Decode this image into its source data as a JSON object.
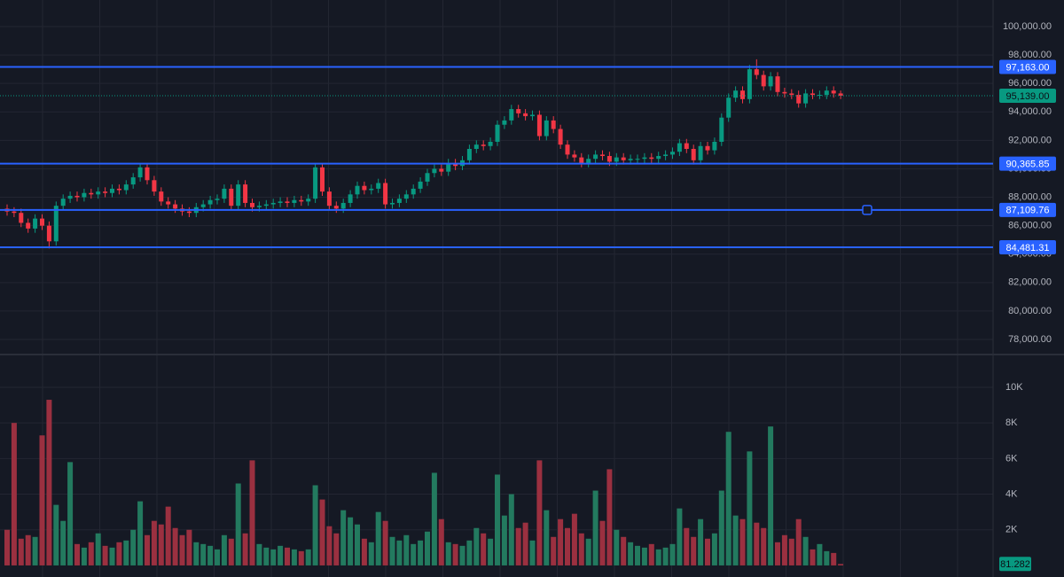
{
  "chart_data": {
    "type": "candlestick",
    "up_color": "#089981",
    "down_color": "#f23645",
    "volume_up_color": "#237a5f",
    "volume_down_color": "#9b3040",
    "level_color": "#2962ff",
    "grid": true,
    "ylim": [
      76940,
      101870
    ],
    "yticks": [
      {
        "value": 78000,
        "label": "78,000.00"
      },
      {
        "value": 80000,
        "label": "80,000.00"
      },
      {
        "value": 82000,
        "label": "82,000.00"
      },
      {
        "value": 84000,
        "label": "84,000.00"
      },
      {
        "value": 86000,
        "label": "86,000.00"
      },
      {
        "value": 88000,
        "label": "88,000.00"
      },
      {
        "value": 90000,
        "label": "90,000.00"
      },
      {
        "value": 92000,
        "label": "92,000.00"
      },
      {
        "value": 94000,
        "label": "94,000.00"
      },
      {
        "value": 96000,
        "label": "96,000.00"
      },
      {
        "value": 98000,
        "label": "98,000.00"
      },
      {
        "value": 100000,
        "label": "100,000.00"
      }
    ],
    "y2lim": [
      -650,
      11840
    ],
    "y2ticks": [
      {
        "value": 2000,
        "label": "2K"
      },
      {
        "value": 4000,
        "label": "4K"
      },
      {
        "value": 6000,
        "label": "6K"
      },
      {
        "value": 8000,
        "label": "8K"
      },
      {
        "value": 10000,
        "label": "10K"
      }
    ],
    "levels": [
      {
        "value": 97163,
        "label": "97,163.00"
      },
      {
        "value": 90365.85,
        "label": "90,365.85"
      },
      {
        "value": 87109.76,
        "label": "87,109.76"
      },
      {
        "value": 84481.31,
        "label": "84,481.31"
      }
    ],
    "last_price": {
      "value": 95139,
      "label": "95,139.00"
    },
    "open": [
      87200,
      87000,
      86900,
      86200,
      85800,
      86500,
      86000,
      84900,
      87400,
      87900,
      88100,
      88000,
      88300,
      88200,
      88400,
      88300,
      88600,
      88500,
      88900,
      89400,
      90100,
      89200,
      88400,
      87700,
      87500,
      87200,
      87000,
      86900,
      87300,
      87500,
      87800,
      87900,
      88600,
      87400,
      88900,
      87600,
      87300,
      87400,
      87500,
      87600,
      87700,
      87600,
      87800,
      87700,
      87900,
      90100,
      88400,
      87400,
      87200,
      87600,
      88200,
      88800,
      88500,
      88600,
      89000,
      87500,
      87600,
      87900,
      88200,
      88600,
      89100,
      89700,
      90000,
      89800,
      90400,
      90200,
      90600,
      91400,
      91700,
      91600,
      91900,
      93100,
      93400,
      94200,
      93900,
      93700,
      93800,
      92300,
      93400,
      92800,
      91700,
      91000,
      90800,
      90400,
      90700,
      91000,
      90900,
      90500,
      90800,
      90600,
      90700,
      90700,
      90800,
      90700,
      90900,
      91000,
      91200,
      91800,
      91400,
      90600,
      91600,
      91300,
      91900,
      93600,
      95000,
      95500,
      94900,
      97000,
      96600,
      95800,
      96500,
      95400,
      95300,
      95200,
      94600,
      95300,
      95200,
      95200,
      95500,
      95300
    ],
    "high": [
      87500,
      87300,
      87200,
      86500,
      86800,
      86800,
      86300,
      87700,
      88200,
      88400,
      88400,
      88600,
      88600,
      88700,
      88700,
      88900,
      88900,
      89200,
      89700,
      90400,
      90400,
      89500,
      88700,
      88000,
      87800,
      87500,
      87300,
      87600,
      87800,
      88100,
      88200,
      88900,
      88900,
      89200,
      89200,
      87900,
      87700,
      87800,
      87900,
      88000,
      88000,
      88100,
      88100,
      88200,
      90400,
      90400,
      88700,
      87700,
      87900,
      88500,
      89100,
      89100,
      88900,
      89300,
      89300,
      87900,
      88200,
      88500,
      88900,
      89400,
      90000,
      90300,
      90300,
      90700,
      90700,
      90900,
      91700,
      92000,
      92000,
      92200,
      93400,
      93700,
      94500,
      94500,
      94200,
      94100,
      94100,
      93700,
      93700,
      93100,
      92000,
      91300,
      91100,
      91000,
      91300,
      91300,
      91200,
      91100,
      91100,
      91000,
      91000,
      91100,
      91100,
      91200,
      91300,
      91500,
      92100,
      92100,
      91700,
      91900,
      91900,
      92200,
      93900,
      95300,
      95800,
      95800,
      97300,
      97700,
      96900,
      96800,
      96800,
      95700,
      95600,
      95500,
      95600,
      95600,
      95500,
      95800,
      95800,
      95500
    ],
    "low": [
      86700,
      86600,
      85900,
      85500,
      85500,
      85700,
      84400,
      84600,
      87100,
      87600,
      87700,
      87700,
      87900,
      87900,
      88000,
      88000,
      88200,
      88200,
      88600,
      89100,
      88900,
      88100,
      87400,
      87200,
      86900,
      86700,
      86600,
      86600,
      87000,
      87200,
      87500,
      87600,
      87100,
      87100,
      87300,
      87000,
      87000,
      87100,
      87200,
      87300,
      87300,
      87300,
      87400,
      87400,
      87600,
      88100,
      87100,
      86900,
      86900,
      87300,
      87900,
      88200,
      88200,
      88300,
      87200,
      87200,
      87300,
      87600,
      87900,
      88300,
      88800,
      89400,
      89500,
      89500,
      89900,
      89900,
      90300,
      91100,
      91300,
      91300,
      91600,
      92800,
      93100,
      93600,
      93400,
      93400,
      92000,
      92000,
      92500,
      91400,
      90700,
      90500,
      90100,
      90100,
      90400,
      90600,
      90200,
      90200,
      90300,
      90300,
      90400,
      90400,
      90400,
      90400,
      90600,
      90700,
      90900,
      91100,
      90300,
      90300,
      91000,
      91000,
      91600,
      93300,
      94700,
      94600,
      94600,
      96300,
      95500,
      95500,
      95100,
      95000,
      94900,
      94300,
      94300,
      94900,
      94900,
      94900,
      95000,
      94900
    ],
    "close": [
      87000,
      86900,
      86200,
      85800,
      86500,
      86000,
      84900,
      87400,
      87900,
      88100,
      88000,
      88300,
      88200,
      88400,
      88300,
      88600,
      88500,
      88900,
      89400,
      90100,
      89200,
      88400,
      87700,
      87500,
      87200,
      87000,
      86900,
      87300,
      87500,
      87800,
      87900,
      88600,
      87400,
      88900,
      87600,
      87300,
      87400,
      87500,
      87600,
      87700,
      87600,
      87800,
      87700,
      87900,
      90100,
      88400,
      87400,
      87200,
      87600,
      88200,
      88800,
      88500,
      88600,
      89000,
      87500,
      87600,
      87900,
      88200,
      88600,
      89100,
      89700,
      90000,
      89800,
      90400,
      90200,
      90600,
      91400,
      91700,
      91600,
      91900,
      93100,
      93400,
      94200,
      93900,
      93700,
      93800,
      92300,
      93400,
      92800,
      91700,
      91000,
      90800,
      90400,
      90700,
      91000,
      90900,
      90500,
      90800,
      90600,
      90700,
      90700,
      90800,
      90700,
      90900,
      91000,
      91200,
      91800,
      91400,
      90600,
      91600,
      91300,
      91900,
      93600,
      95000,
      95500,
      94900,
      97000,
      96600,
      95800,
      96500,
      95400,
      95300,
      95200,
      94600,
      95300,
      95200,
      95200,
      95500,
      95300,
      95139
    ],
    "volume": [
      2000,
      8000,
      1500,
      1700,
      1600,
      7300,
      9300,
      3400,
      2500,
      5800,
      1200,
      1000,
      1300,
      1800,
      1100,
      1000,
      1300,
      1400,
      2000,
      3600,
      1700,
      2500,
      2300,
      3300,
      2100,
      1700,
      2000,
      1300,
      1200,
      1100,
      900,
      1700,
      1500,
      4600,
      1800,
      5900,
      1200,
      1000,
      900,
      1100,
      1000,
      900,
      800,
      900,
      4500,
      3700,
      2200,
      1800,
      3100,
      2700,
      2300,
      1500,
      1300,
      3000,
      2500,
      1600,
      1400,
      1700,
      1200,
      1400,
      1900,
      5200,
      2600,
      1300,
      1200,
      1100,
      1400,
      2100,
      1800,
      1500,
      5100,
      2800,
      4000,
      2100,
      2400,
      1400,
      5900,
      3100,
      1600,
      2600,
      2100,
      2900,
      1800,
      1500,
      4200,
      2500,
      5400,
      2000,
      1600,
      1300,
      1100,
      1000,
      1200,
      900,
      1000,
      1200,
      3200,
      2100,
      1600,
      2600,
      1500,
      1800,
      4200,
      7500,
      2800,
      2600,
      6400,
      2400,
      2100,
      7800,
      1300,
      1700,
      1500,
      2600,
      1600,
      900,
      1200,
      800,
      700,
      81.282
    ]
  }
}
